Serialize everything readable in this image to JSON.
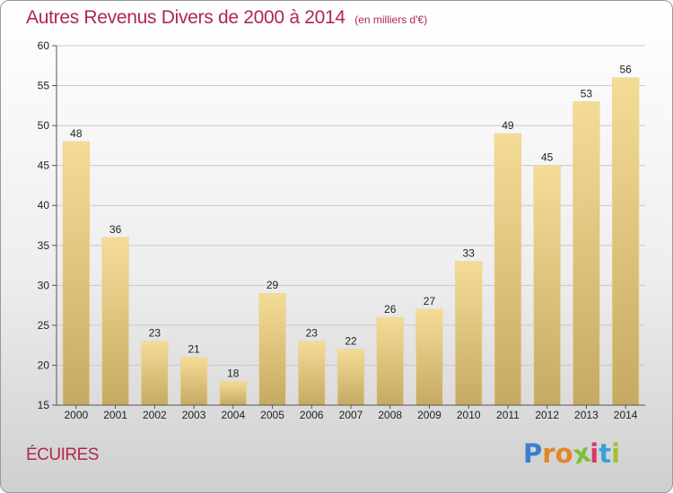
{
  "header": {
    "title": "Autres Revenus Divers de 2000 à 2014",
    "unit": "(en milliers d'€)"
  },
  "footer": {
    "commune": "ÉCUIRES",
    "logo": [
      "P",
      "r",
      "o",
      "x",
      "i",
      "t",
      "i"
    ]
  },
  "colors": {
    "title": "#b0284c",
    "bar_light": "#f5dc96",
    "bar_dark": "#c6aa64",
    "logo": [
      "#3a7fd0",
      "#e0862a",
      "#e0862a",
      "#7cc03a",
      "#d83a6a",
      "#3aa0d8",
      "#a0c03a"
    ]
  },
  "chart_data": {
    "type": "bar",
    "categories": [
      "2000",
      "2001",
      "2002",
      "2003",
      "2004",
      "2005",
      "2006",
      "2007",
      "2008",
      "2009",
      "2010",
      "2011",
      "2012",
      "2013",
      "2014"
    ],
    "values": [
      48,
      36,
      23,
      21,
      18,
      29,
      23,
      22,
      26,
      27,
      33,
      49,
      45,
      53,
      56
    ],
    "ylim": [
      15,
      60
    ],
    "yticks": [
      15,
      20,
      25,
      30,
      35,
      40,
      45,
      50,
      55,
      60
    ],
    "grid": true,
    "legend": "none"
  }
}
